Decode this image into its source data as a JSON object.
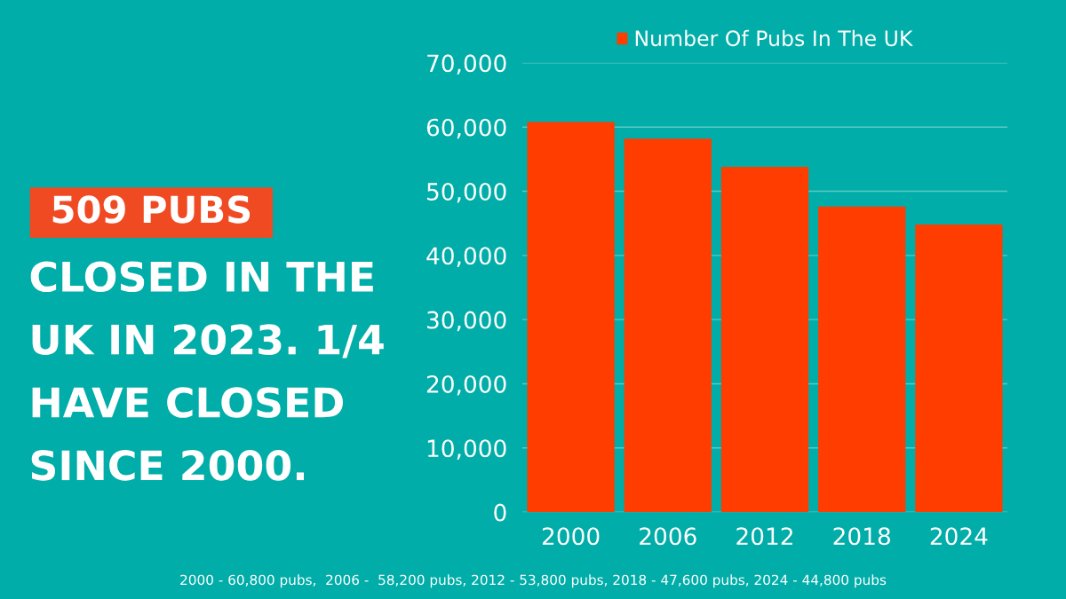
{
  "chart_data": {
    "type": "bar",
    "title": "509 PUBS",
    "subtitle": "CLOSED IN THE UK IN 2023. 1/4 HAVE CLOSED SINCE 2000.",
    "categories": [
      "2000",
      "2006",
      "2012",
      "2018",
      "2024"
    ],
    "series": [
      {
        "name": "Number Of Pubs In The UK",
        "color": "#ff3d00",
        "values": [
          60800,
          58200,
          53800,
          47600,
          44800
        ]
      }
    ],
    "ylim": [
      0,
      70000
    ],
    "yticks": [
      {
        "value": 0,
        "label": "0"
      },
      {
        "value": 10000,
        "label": "10,000"
      },
      {
        "value": 20000,
        "label": "20,000"
      },
      {
        "value": 30000,
        "label": "30,000"
      },
      {
        "value": 40000,
        "label": "40,000"
      },
      {
        "value": 50000,
        "label": "50,000"
      },
      {
        "value": 60000,
        "label": "60,000"
      },
      {
        "value": 70000,
        "label": "70,000"
      }
    ],
    "grid": "y",
    "legend": "top",
    "annotations": [
      "2000 - 60,800 pubs,  2006 -  58,200 pubs, 2012 - 53,800 pubs, 2018 - 47,600 pubs, 2024 - 44,800 pubs"
    ]
  }
}
